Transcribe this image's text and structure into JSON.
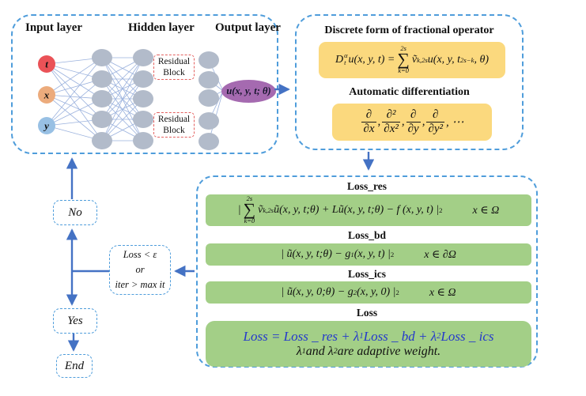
{
  "colors": {
    "box_border": "#4f9ddb",
    "arrow": "#4472c4",
    "edge_lines": "#9ab1dd",
    "hidden_node_gray": "#b2bbca",
    "input_t_red": "#ea5257",
    "input_x_orange": "#ecab7c",
    "input_y_blue": "#98c0e4",
    "output_ellipse_purple": "#a56ab0",
    "formula_panel_yellow": "#fbd97e",
    "loss_panel_green": "#a3cf87",
    "residual_border_red": "#e4605f",
    "loss_formula_blue": "#2438cc"
  },
  "nn": {
    "labels": {
      "input": "Input layer",
      "hidden": "Hidden layer",
      "output": "Output layer"
    },
    "inputs": [
      {
        "label": "t",
        "color": "#ea5257"
      },
      {
        "label": "x",
        "color": "#ecab7c"
      },
      {
        "label": "y",
        "color": "#98c0e4"
      }
    ],
    "residual_blocks": [
      {
        "line1": "Residual",
        "line2": "Block"
      },
      {
        "line1": "Residual",
        "line2": "Block"
      }
    ],
    "output_text": "u(x, y, t; θ)"
  },
  "operator_box": {
    "title": "Discrete form of fractional operator",
    "formula": [
      {
        "t": "i",
        "v": "D"
      },
      {
        "t": "ss",
        "sup": "α",
        "sub": "t"
      },
      {
        "t": "i",
        "v": "u(x, y, t) = "
      },
      {
        "t": "sum",
        "top": "2s",
        "bot": "k=0"
      },
      {
        "t": "i",
        "v": "ṽ"
      },
      {
        "t": "sub",
        "v": "k,2s"
      },
      {
        "t": "i",
        "v": "u(x, y, t"
      },
      {
        "t": "sub",
        "v": "2s−k"
      },
      {
        "t": "i",
        "v": ", θ)"
      }
    ],
    "autodiff_title": "Automatic differentiation",
    "derivatives": [
      {
        "t": "frac",
        "num": "∂",
        "den": "∂x"
      },
      {
        "t": "i",
        "v": ", "
      },
      {
        "t": "frac",
        "num": "∂²",
        "den": "∂x²"
      },
      {
        "t": "i",
        "v": ", "
      },
      {
        "t": "frac",
        "num": "∂",
        "den": "∂y"
      },
      {
        "t": "i",
        "v": ", "
      },
      {
        "t": "frac",
        "num": "∂",
        "den": "∂y²"
      },
      {
        "t": "i",
        "v": ", ⋯"
      }
    ]
  },
  "loss_panel": {
    "res_header": "Loss_res",
    "res_formula": [
      {
        "t": "i",
        "v": "| "
      },
      {
        "t": "sum",
        "top": "2s",
        "bot": "k=0"
      },
      {
        "t": "i",
        "v": "ṽ"
      },
      {
        "t": "sub",
        "v": "k,2s"
      },
      {
        "t": "i",
        "v": "ũ(x, y, t;θ) + Lũ(x, y, t;θ) − f (x, y, t) |"
      },
      {
        "t": "sup",
        "v": "2"
      },
      {
        "t": "sp"
      },
      {
        "t": "i",
        "v": "x ∈ Ω"
      }
    ],
    "bd_header": "Loss_bd",
    "bd_formula": [
      {
        "t": "i",
        "v": "| ũ(x, y, t;θ) − g"
      },
      {
        "t": "sub",
        "v": "1"
      },
      {
        "t": "i",
        "v": "(x, y, t) |"
      },
      {
        "t": "sup",
        "v": "2"
      },
      {
        "t": "sp"
      },
      {
        "t": "i",
        "v": "x ∈ ∂Ω"
      }
    ],
    "ics_header": "Loss_ics",
    "ics_formula": [
      {
        "t": "i",
        "v": "| ũ(x, y, 0;θ) − g"
      },
      {
        "t": "sub",
        "v": "2"
      },
      {
        "t": "i",
        "v": "(x, y, 0) |"
      },
      {
        "t": "sup",
        "v": "2"
      },
      {
        "t": "sp"
      },
      {
        "t": "i",
        "v": "x ∈ Ω"
      }
    ],
    "loss_header": "Loss",
    "total_formula": [
      {
        "t": "i",
        "v": "Loss = Loss _ res + λ"
      },
      {
        "t": "sub",
        "v": "1"
      },
      {
        "t": "i",
        "v": "Loss _ bd + λ"
      },
      {
        "t": "sub",
        "v": "2"
      },
      {
        "t": "i",
        "v": "Loss _ ics"
      }
    ],
    "weights_note": [
      {
        "t": "i",
        "v": "λ"
      },
      {
        "t": "sub",
        "v": "1"
      },
      {
        "t": "i",
        "v": " and λ"
      },
      {
        "t": "sub",
        "v": "2"
      },
      {
        "t": "i",
        "v": " are adaptive weight."
      }
    ]
  },
  "flowchart": {
    "no": "No",
    "yes": "Yes",
    "end": "End",
    "condition": [
      "Loss < ε",
      "or",
      "iter > max it"
    ]
  }
}
